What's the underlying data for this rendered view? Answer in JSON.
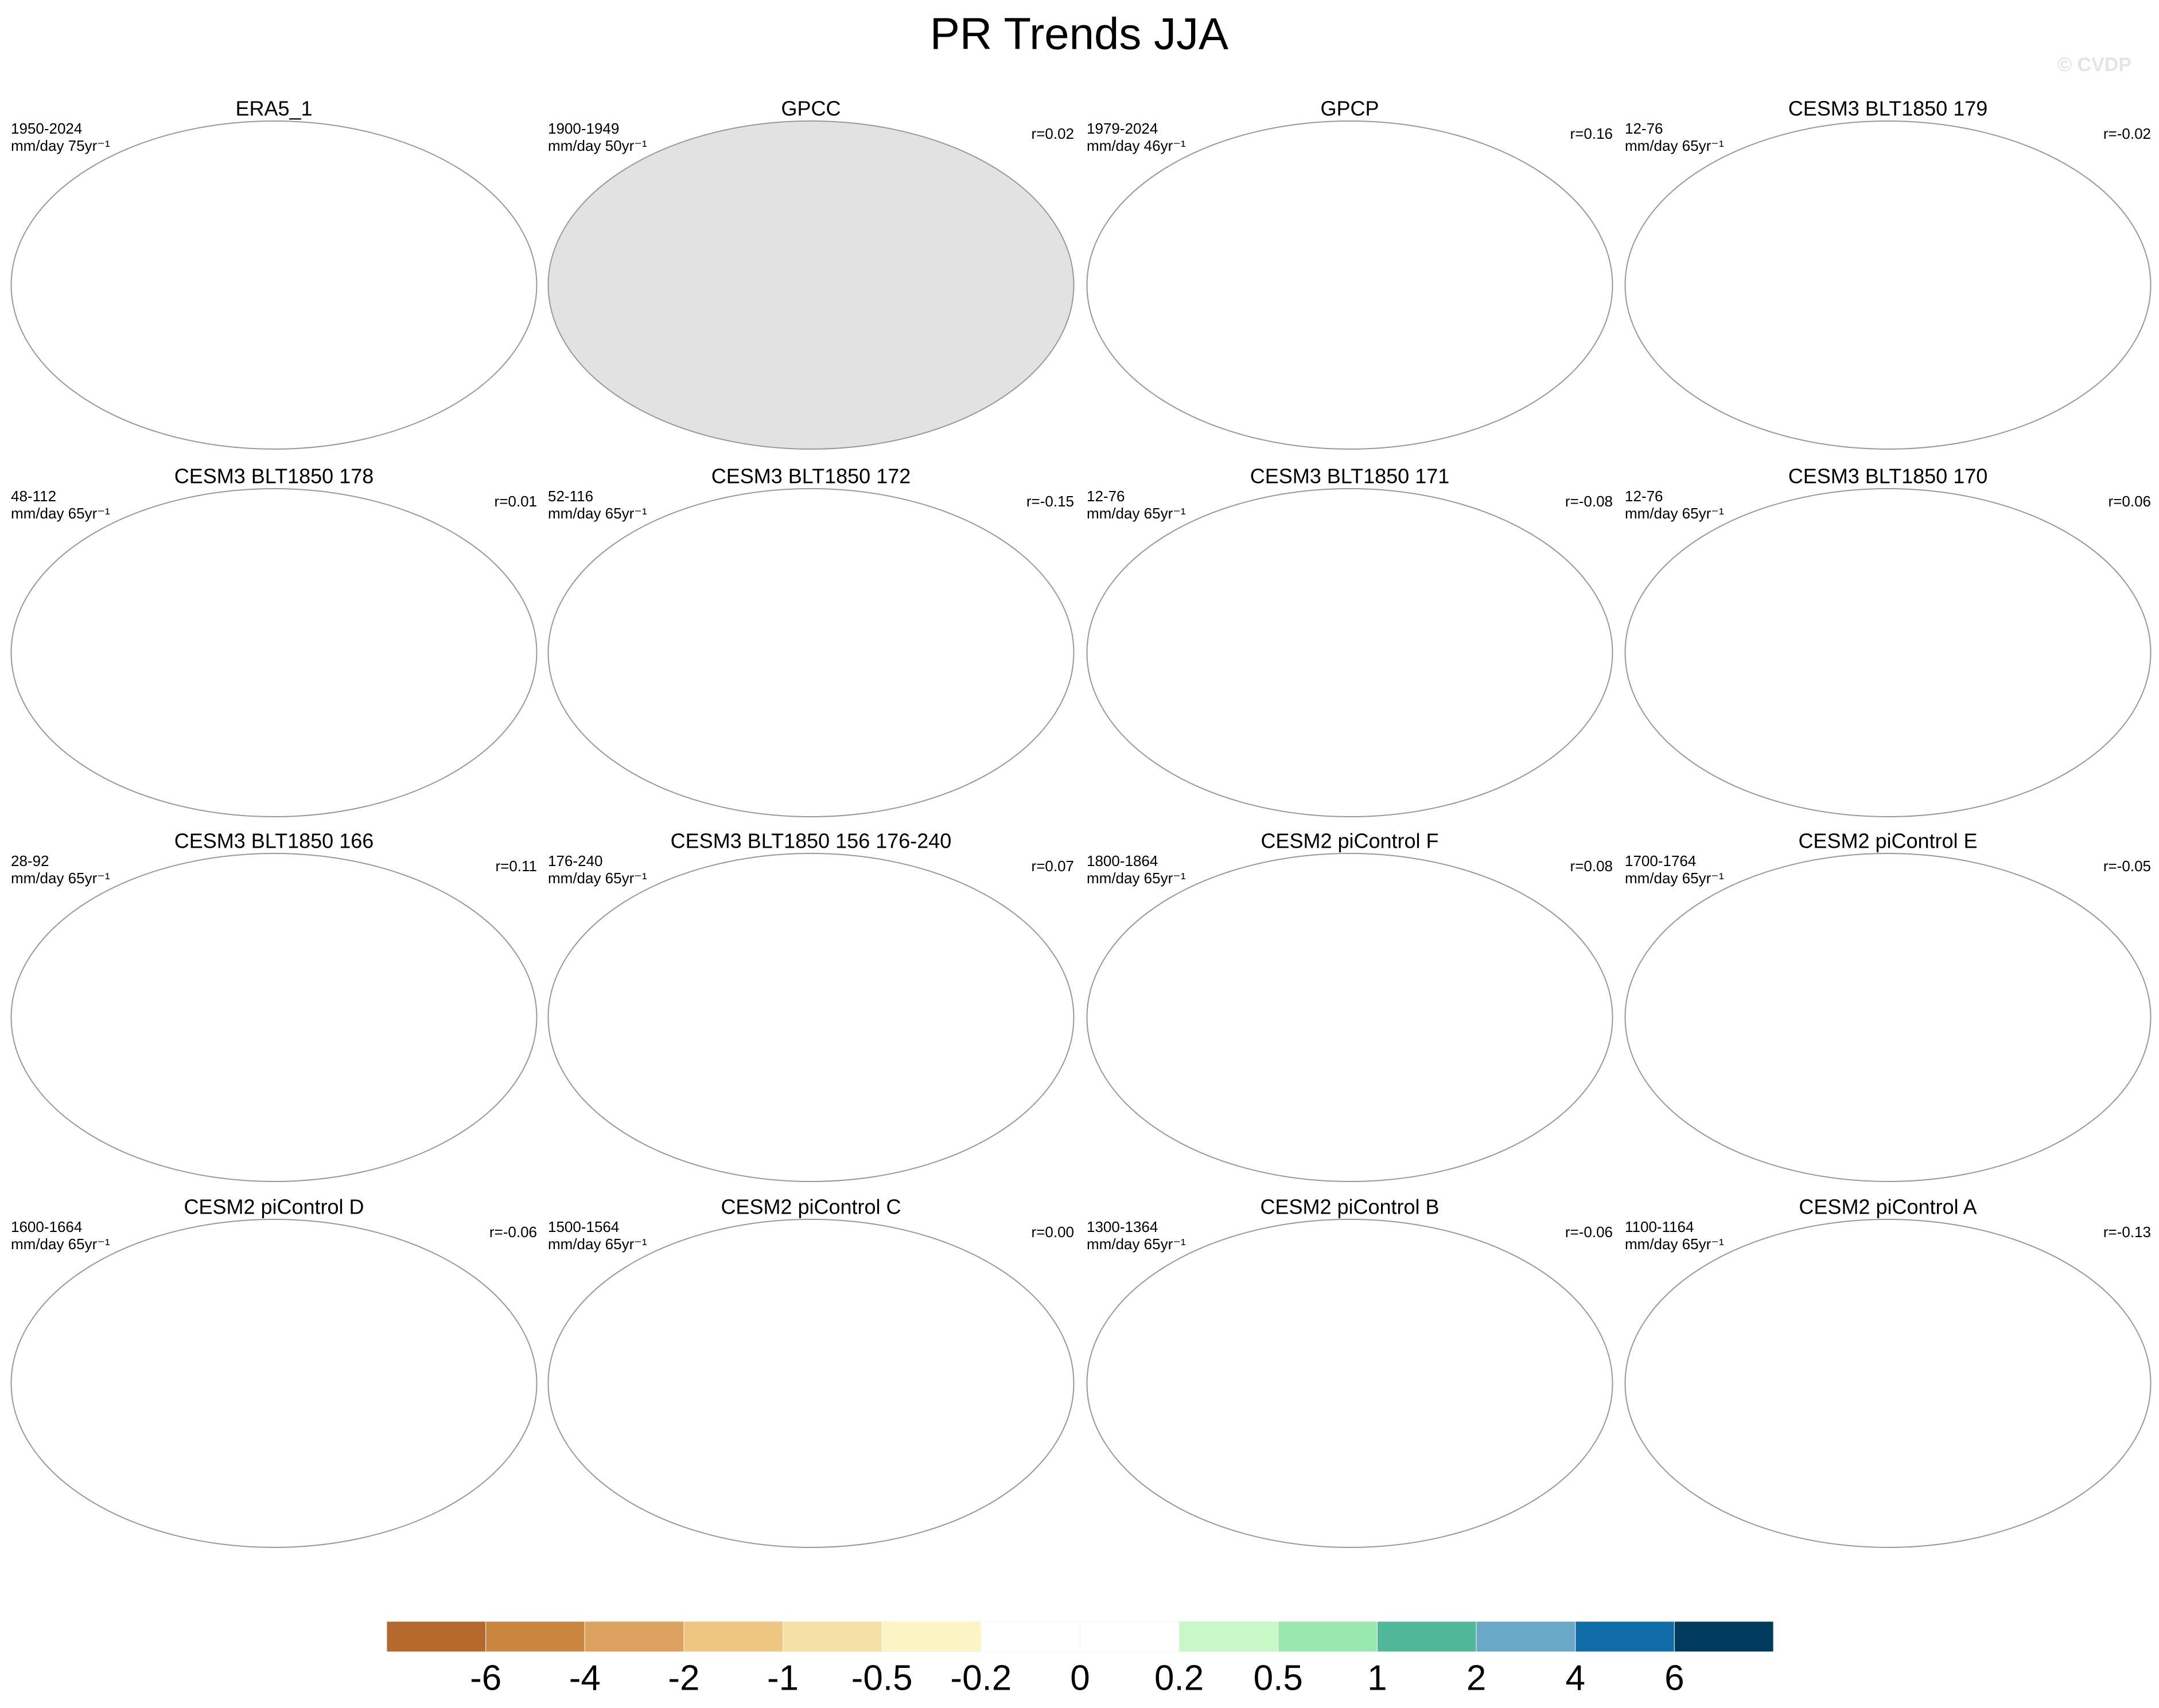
{
  "title": "PR Trends JJA",
  "watermark": "© CVDP",
  "panels": [
    {
      "title": "ERA5_1",
      "period": "1950-2024",
      "units": "mm/day 75yr⁻¹"
    },
    {
      "title": "GPCC",
      "period": "1900-1949",
      "units": "mm/day 50yr⁻¹",
      "r": "r=0.02",
      "background": "#e2e2e2"
    },
    {
      "title": "GPCP",
      "period": "1979-2024",
      "units": "mm/day 46yr⁻¹",
      "r": "r=0.16"
    },
    {
      "title": "CESM3 BLT1850 179",
      "period": "12-76",
      "units": "mm/day 65yr⁻¹",
      "r": "r=-0.02"
    },
    {
      "title": "CESM3 BLT1850 178",
      "period": "48-112",
      "units": "mm/day 65yr⁻¹",
      "r": "r=0.01"
    },
    {
      "title": "CESM3 BLT1850 172",
      "period": "52-116",
      "units": "mm/day 65yr⁻¹",
      "r": "r=-0.15"
    },
    {
      "title": "CESM3 BLT1850 171",
      "period": "12-76",
      "units": "mm/day 65yr⁻¹",
      "r": "r=-0.08"
    },
    {
      "title": "CESM3 BLT1850 170",
      "period": "12-76",
      "units": "mm/day 65yr⁻¹",
      "r": "r=0.06"
    },
    {
      "title": "CESM3 BLT1850 166",
      "period": "28-92",
      "units": "mm/day 65yr⁻¹",
      "r": "r=0.11"
    },
    {
      "title": "CESM3 BLT1850 156 176-240",
      "period": "176-240",
      "units": "mm/day 65yr⁻¹",
      "r": "r=0.07"
    },
    {
      "title": "CESM2 piControl F",
      "period": "1800-1864",
      "units": "mm/day 65yr⁻¹",
      "r": "r=0.08"
    },
    {
      "title": "CESM2 piControl E",
      "period": "1700-1764",
      "units": "mm/day 65yr⁻¹",
      "r": "r=-0.05"
    },
    {
      "title": "CESM2 piControl D",
      "period": "1600-1664",
      "units": "mm/day 65yr⁻¹",
      "r": "r=-0.06"
    },
    {
      "title": "CESM2 piControl C",
      "period": "1500-1564",
      "units": "mm/day 65yr⁻¹",
      "r": "r=0.00"
    },
    {
      "title": "CESM2 piControl B",
      "period": "1300-1364",
      "units": "mm/day 65yr⁻¹",
      "r": "r=-0.06"
    },
    {
      "title": "CESM2 piControl A",
      "period": "1100-1164",
      "units": "mm/day 65yr⁻¹",
      "r": "r=-0.13"
    }
  ],
  "colorbar": {
    "colors": [
      "#b5692c",
      "#ca853f",
      "#dca15f",
      "#efc582",
      "#f5e0a6",
      "#fcf4c4",
      "#ffffff",
      "#ffffff",
      "#c8f7c8",
      "#98e8b0",
      "#50b898",
      "#6aa8c8",
      "#106ca8",
      "#003a5c"
    ],
    "labels": [
      -6,
      -4,
      -2,
      -1,
      -0.5,
      -0.2,
      0,
      0.2,
      0.5,
      1,
      2,
      4,
      6
    ]
  }
}
